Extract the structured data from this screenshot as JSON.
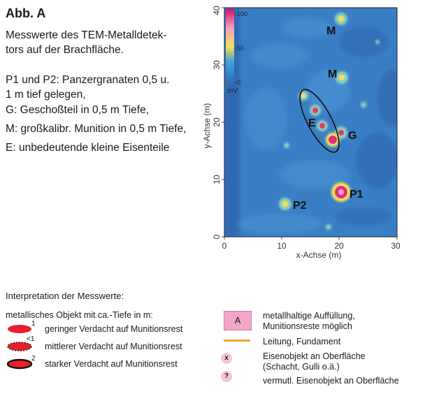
{
  "figure": {
    "title": "Abb. A",
    "description": {
      "line1": "Messwerte  des  TEM-Metalldetek-",
      "line2": "tors auf der Brachfläche.",
      "line3": "P1 und P2: Panzergranaten 0,5 u.",
      "line4": "1 m tief gelegen,",
      "line5": "G: Geschoßteil in 0,5 m Tiefe,",
      "line6": "M: großkalibr. Munition in 0,5 m Tiefe,",
      "line7": "E: unbedeutende kleine Eisenteile"
    }
  },
  "map": {
    "x_axis_label": "x-Achse (m)",
    "y_axis_label": "y-Achse (m)",
    "x_ticks": [
      "0",
      "10",
      "20",
      "30"
    ],
    "y_ticks": [
      "0",
      "10",
      "20",
      "30",
      "40"
    ],
    "colorbar": {
      "max": "100",
      "mid": "50",
      "min": "0",
      "unit": "mV"
    },
    "colors": {
      "background": "#3a7fc6",
      "low": "#2f6bb4",
      "mid": "#f2c43a",
      "high": "#d8106a"
    },
    "labels": {
      "m1": "M",
      "m2": "M",
      "e": "E",
      "g": "G",
      "p1": "P1",
      "p2": "P2"
    }
  },
  "legend": {
    "title": "Interpretation der Messwerte:",
    "subtitle": "metallisches Objekt mit ca.-Tiefe in m:",
    "left": [
      {
        "depth": "1",
        "text": "geringer Verdacht auf Munitionsrest"
      },
      {
        "depth": "<1",
        "text": "mittlerer Verdacht auf Munitionsrest"
      },
      {
        "depth": "2",
        "text": "starker Verdacht auf Munitionsrest"
      }
    ],
    "right": {
      "area_symbol": "A",
      "area_line1": "metallhaltige Auffüllung,",
      "area_line2": "Munitionsreste möglich",
      "line_text": "Leitung, Fundament",
      "x_symbol": "x",
      "x_line1": "Eisenobjekt an Oberfläche",
      "x_line2": "(Schacht, Gulli o.ä.)",
      "q_symbol": "?",
      "q_text": "vermutl. Eisenobjekt an Oberfläche"
    }
  }
}
